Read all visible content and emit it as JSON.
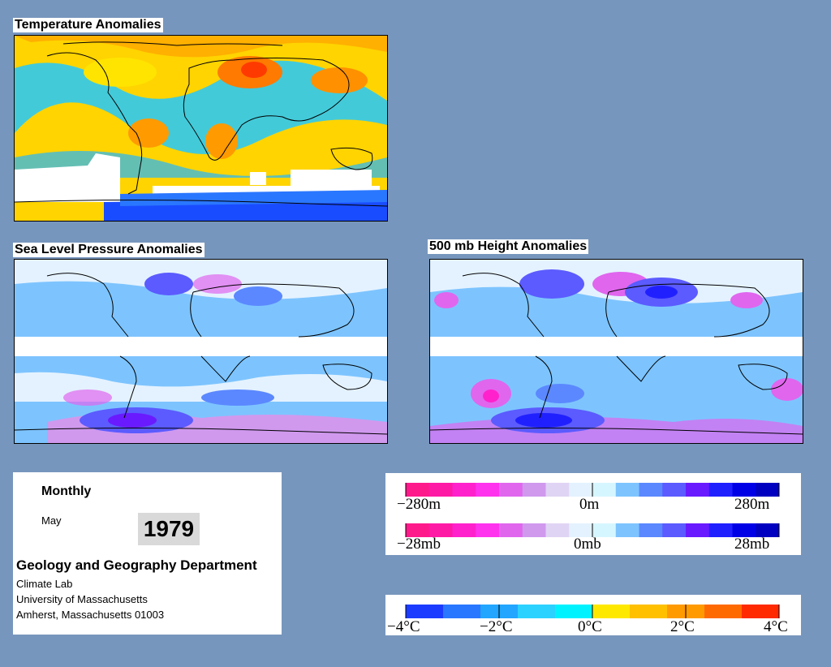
{
  "panels": {
    "temperature": {
      "title": "Temperature Anomalies"
    },
    "slp": {
      "title": "Sea Level Pressure Anomalies"
    },
    "height": {
      "title": "500 mb Height Anomalies"
    }
  },
  "info": {
    "period": "Monthly",
    "month": "May",
    "year": "1979",
    "department": "Geology and Geography Department",
    "lab": "Climate Lab",
    "university": "University of Massachusetts",
    "address": "Amherst, Massachusetts 01003"
  },
  "legend_height": {
    "min": "−280m",
    "mid": "0m",
    "max": "280m"
  },
  "legend_pressure": {
    "min": "−28mb",
    "mid": "0mb",
    "max": "28mb"
  },
  "legend_temp": {
    "labels": [
      "−4°C",
      "−2°C",
      "0°C",
      "2°C",
      "4°C"
    ]
  },
  "colors": {
    "background": "#7796bd",
    "anomaly_scale": [
      "#ff1a8c",
      "#ff1aa6",
      "#ff22cc",
      "#ff33ee",
      "#e066ee",
      "#d099ee",
      "#e0d4f4",
      "#e4f2ff",
      "#d6f6ff",
      "#7dc4ff",
      "#5b88ff",
      "#5b5bff",
      "#6a1aff",
      "#2020ff",
      "#0000e6",
      "#0000c0"
    ],
    "temp_scale": [
      "#1b3cff",
      "#2a77ff",
      "#22a6ff",
      "#2cd2ff",
      "#00f2ff",
      "#ffe800",
      "#ffc000",
      "#ff9a00",
      "#ff6a00",
      "#ff2a00"
    ]
  }
}
